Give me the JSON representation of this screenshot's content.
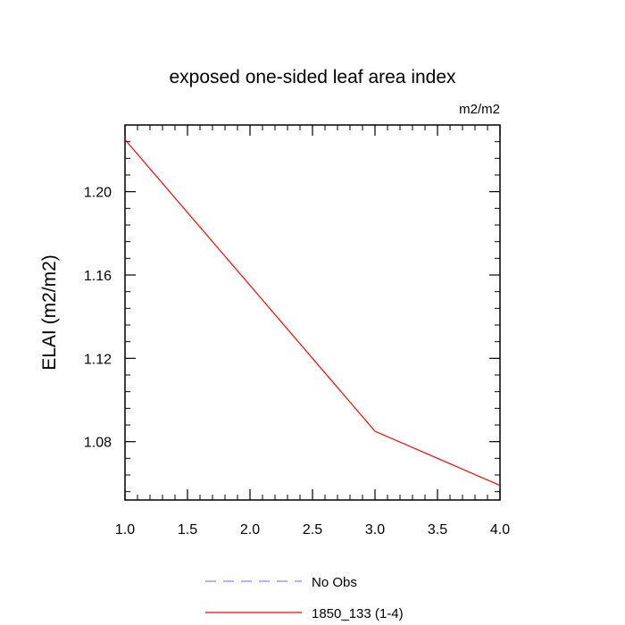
{
  "chart_data": {
    "type": "line",
    "title": "exposed one-sided leaf area index",
    "units": "m2/m2",
    "xlabel": "",
    "ylabel": "ELAI  (m2/m2)",
    "xlim": [
      1.0,
      4.0
    ],
    "ylim": [
      1.052,
      1.232
    ],
    "x_ticks": [
      1.0,
      1.5,
      2.0,
      2.5,
      3.0,
      3.5,
      4.0
    ],
    "x_tick_labels": [
      "1.0",
      "1.5",
      "2.0",
      "2.5",
      "3.0",
      "3.5",
      "4.0"
    ],
    "x_minor_ticks": [
      1.1,
      1.2,
      1.3,
      1.4,
      1.6,
      1.7,
      1.8,
      1.9,
      2.1,
      2.2,
      2.3,
      2.4,
      2.6,
      2.7,
      2.8,
      2.9,
      3.1,
      3.2,
      3.3,
      3.4,
      3.6,
      3.7,
      3.8,
      3.9
    ],
    "y_ticks": [
      1.08,
      1.12,
      1.16,
      1.2
    ],
    "y_tick_labels": [
      "1.08",
      "1.12",
      "1.16",
      "1.20"
    ],
    "y_minor_ticks": [
      1.056,
      1.064,
      1.072,
      1.088,
      1.096,
      1.104,
      1.112,
      1.128,
      1.136,
      1.144,
      1.152,
      1.168,
      1.176,
      1.184,
      1.192,
      1.208,
      1.216,
      1.224
    ],
    "grid": false,
    "legend_position": "bottom-center",
    "series": [
      {
        "name": "No Obs",
        "color": "#8888ff",
        "dash": "dashed",
        "x": [],
        "y": []
      },
      {
        "name": "1850_133 (1-4)",
        "color": "#ff0000",
        "dash": "solid",
        "x": [
          1.0,
          2.0,
          3.0,
          4.0
        ],
        "y": [
          1.225,
          1.155,
          1.085,
          1.059
        ]
      }
    ]
  }
}
